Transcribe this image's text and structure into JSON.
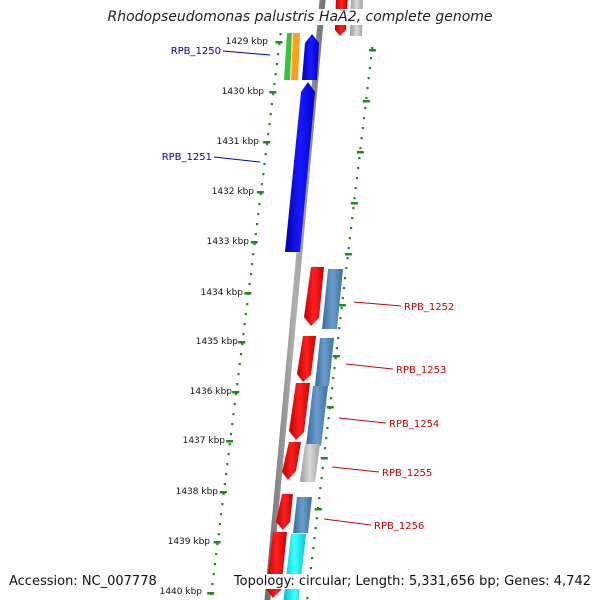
{
  "title": "Rhodopseudomonas palustris HaA2, complete genome",
  "accession": "Accession: NC_007778",
  "topology": "Topology: circular; Length: 5,331,656 bp; Genes: 4,742",
  "colors": {
    "backbone": "#8c8c8c",
    "tick": "#1e8a1e",
    "forward_label": "#0000bb",
    "reverse_label": "#cc0000",
    "forward_gene": "#0000ee",
    "reverse_gene": "#ee0000",
    "cds_blue": "#4a7fb0",
    "cds_gray": "#b8b8b8",
    "cds_cyan": "#00e5f0",
    "rrna_green": "#33bb33",
    "rrna_orange": "#ff9900"
  },
  "kbp_labels": [
    "1429 kbp",
    "1430 kbp",
    "1431 kbp",
    "1432 kbp",
    "1433 kbp",
    "1434 kbp",
    "1435 kbp",
    "1436 kbp",
    "1437 kbp",
    "1438 kbp",
    "1439 kbp",
    "1440 kbp"
  ],
  "genes": [
    {
      "name": "RPB_1250",
      "strand": "forward"
    },
    {
      "name": "RPB_1251",
      "strand": "forward"
    },
    {
      "name": "RPB_1252",
      "strand": "reverse"
    },
    {
      "name": "RPB_1253",
      "strand": "reverse"
    },
    {
      "name": "RPB_1254",
      "strand": "reverse"
    },
    {
      "name": "RPB_1255",
      "strand": "reverse"
    },
    {
      "name": "RPB_1256",
      "strand": "reverse"
    }
  ]
}
